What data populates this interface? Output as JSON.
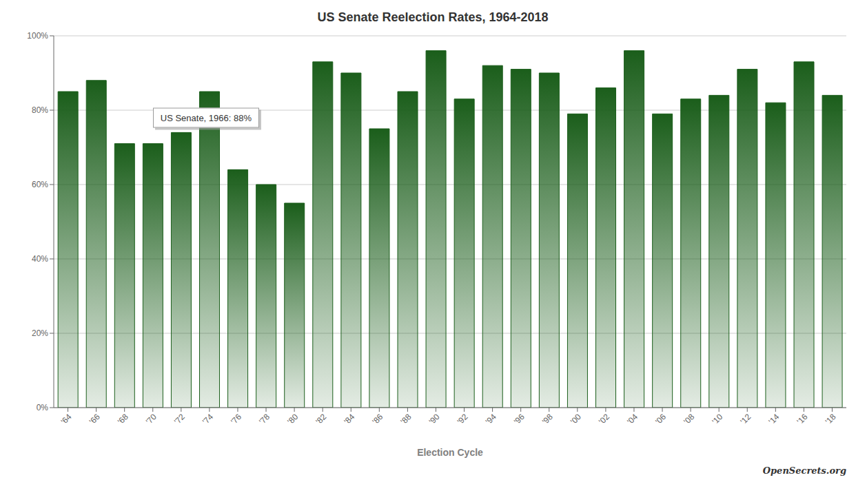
{
  "chart_data": {
    "type": "bar",
    "title": "US Senate Reelection Rates, 1964-2018",
    "xlabel": "Election Cycle",
    "categories": [
      "'64",
      "'66",
      "'68",
      "'70",
      "'72",
      "'74",
      "'76",
      "'78",
      "'80",
      "'82",
      "'84",
      "'86",
      "'88",
      "'90",
      "'92",
      "'94",
      "'96",
      "'98",
      "'00",
      "'02",
      "'04",
      "'06",
      "'08",
      "'10",
      "'12",
      "'14",
      "'16",
      "'18"
    ],
    "values": [
      0.85,
      0.88,
      0.71,
      0.71,
      0.74,
      0.85,
      0.64,
      0.6,
      0.55,
      0.93,
      0.9,
      0.75,
      0.85,
      0.96,
      0.83,
      0.92,
      0.91,
      0.9,
      0.79,
      0.86,
      0.96,
      0.79,
      0.83,
      0.84,
      0.91,
      0.82,
      0.93,
      0.84
    ],
    "color": "#1b5e1b",
    "ylim": [
      0,
      1.0
    ],
    "yticks": [
      {
        "value": 0.0,
        "label": "0%"
      },
      {
        "value": 0.2,
        "label": "20%"
      },
      {
        "value": 0.4,
        "label": "40%"
      },
      {
        "value": 0.6,
        "label": "60%"
      },
      {
        "value": 0.8,
        "label": "80%"
      },
      {
        "value": 1.0,
        "label": "100%"
      }
    ],
    "grid": true,
    "annotations": [
      "US Senate, 1966: 88%",
      "OpenSecrets.org"
    ]
  }
}
